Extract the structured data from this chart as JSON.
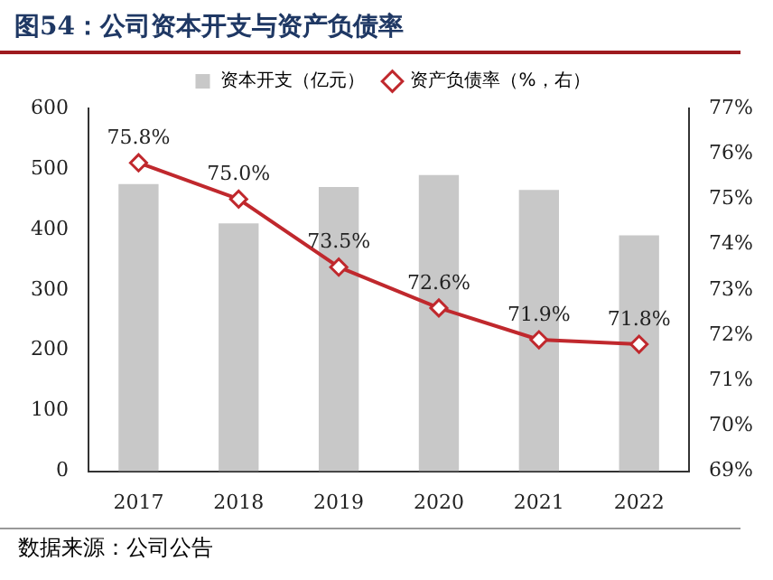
{
  "chart_data": {
    "type": "bar",
    "title": "图54：公司资本开支与资产负债率",
    "categories": [
      "2017",
      "2018",
      "2019",
      "2020",
      "2021",
      "2022"
    ],
    "series": [
      {
        "name": "资本开支（亿元）",
        "color": "#c8c8c8",
        "values": [
          475,
          410,
          470,
          490,
          465,
          390
        ]
      },
      {
        "name": "资产负债率（%，右）",
        "type": "line",
        "axis": "y2",
        "color": "#c0282d",
        "marker": "diamond",
        "values": [
          75.8,
          75.0,
          73.5,
          72.6,
          71.9,
          71.8
        ],
        "value_labels": [
          "75.8%",
          "75.0%",
          "73.5%",
          "72.6%",
          "71.9%",
          "71.8%"
        ]
      }
    ],
    "ylim": [
      0,
      600
    ],
    "yticks": [
      0,
      100,
      200,
      300,
      400,
      500,
      600
    ],
    "y2lim": [
      69,
      77
    ],
    "y2ticks": [
      {
        "value": 69,
        "label": "69%"
      },
      {
        "value": 70,
        "label": "70%"
      },
      {
        "value": 71,
        "label": "71%"
      },
      {
        "value": 72,
        "label": "72%"
      },
      {
        "value": 73,
        "label": "73%"
      },
      {
        "value": 74,
        "label": "74%"
      },
      {
        "value": 75,
        "label": "75%"
      },
      {
        "value": 76,
        "label": "76%"
      },
      {
        "value": 77,
        "label": "77%"
      }
    ],
    "grid": false,
    "legend": "top",
    "annotations": [
      "数据来源：公司公告"
    ]
  }
}
